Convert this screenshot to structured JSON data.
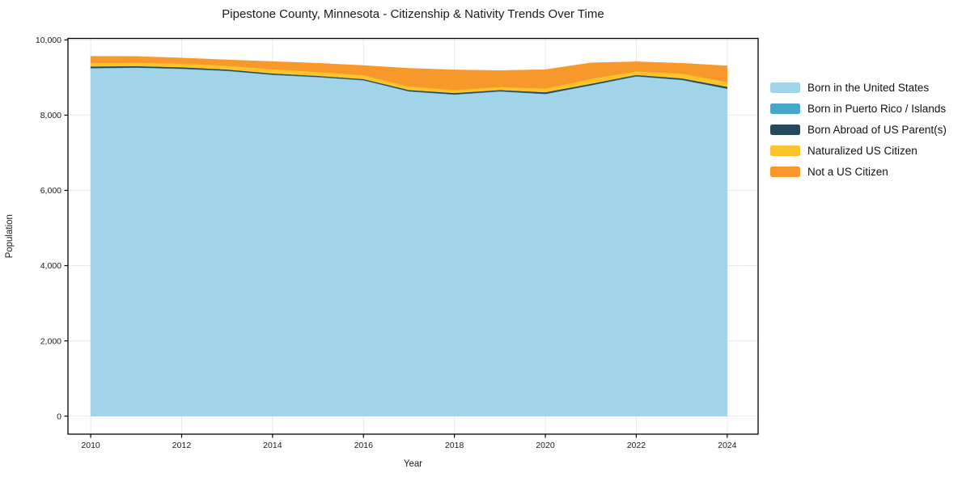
{
  "figure": {
    "background": "#ffffff",
    "spine_color": "#000000",
    "grid_color": "#e9e9e9",
    "tick_color": "#1a1a1a"
  },
  "chart_data": {
    "type": "area",
    "stacked": true,
    "title": "Pipestone County, Minnesota - Citizenship & Nativity Trends Over Time",
    "xlabel": "Year",
    "ylabel": "Population",
    "x": [
      2010,
      2011,
      2012,
      2013,
      2014,
      2015,
      2016,
      2017,
      2018,
      2019,
      2020,
      2021,
      2022,
      2023,
      2024
    ],
    "series": [
      {
        "name": "Born in the United States",
        "color": "#a1d3e9",
        "values": [
          9245,
          9260,
          9230,
          9175,
          9070,
          9010,
          8925,
          8630,
          8545,
          8630,
          8560,
          8790,
          9030,
          8935,
          8700
        ]
      },
      {
        "name": "Born in Puerto Rico / Islands",
        "color": "#44a8c6",
        "values": [
          10,
          10,
          10,
          10,
          10,
          10,
          10,
          10,
          10,
          10,
          10,
          10,
          10,
          10,
          10
        ]
      },
      {
        "name": "Born Abroad of US Parent(s)",
        "color": "#26485c",
        "values": [
          40,
          35,
          35,
          30,
          30,
          25,
          25,
          30,
          35,
          30,
          40,
          35,
          30,
          35,
          45
        ]
      },
      {
        "name": "Naturalized US Citizen",
        "color": "#fcc32d",
        "values": [
          90,
          90,
          95,
          100,
          110,
          105,
          100,
          95,
          80,
          80,
          100,
          130,
          95,
          125,
          125
        ]
      },
      {
        "name": "Not a US Citizen",
        "color": "#f8982b",
        "values": [
          180,
          165,
          150,
          155,
          205,
          230,
          260,
          480,
          535,
          435,
          500,
          425,
          255,
          275,
          430
        ]
      }
    ],
    "xticks": [
      2010,
      2012,
      2014,
      2016,
      2018,
      2020,
      2022,
      2024
    ],
    "xtick_labels": [
      "2010",
      "2012",
      "2014",
      "2016",
      "2018",
      "2020",
      "2022",
      "2024"
    ],
    "yticks": [
      0,
      2000,
      4000,
      6000,
      8000,
      10000
    ],
    "ytick_labels": [
      "0",
      "2,000",
      "4,000",
      "6,000",
      "8,000",
      "10,000"
    ],
    "xlim": [
      2009.5,
      2024.68
    ],
    "ylim": [
      -480,
      10040
    ],
    "grid": true,
    "legend_position": "right"
  }
}
